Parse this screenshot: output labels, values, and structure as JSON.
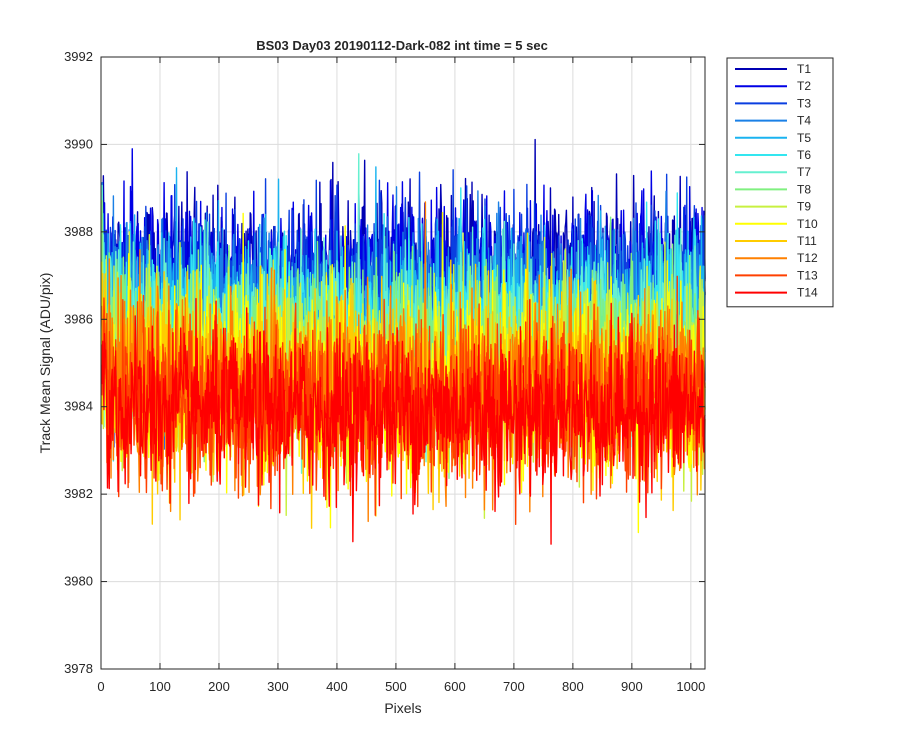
{
  "chart_data": {
    "type": "line",
    "title": "BS03 Day03 20190112-Dark-082 int time = 5 sec",
    "xlabel": "Pixels",
    "ylabel": "Track Mean Signal (ADU/pix)",
    "xlim": [
      0,
      1024
    ],
    "ylim": [
      3978,
      3992
    ],
    "xticks": [
      0,
      100,
      200,
      300,
      400,
      500,
      600,
      700,
      800,
      900,
      1000
    ],
    "yticks": [
      3978,
      3980,
      3982,
      3984,
      3986,
      3988,
      3990,
      3992
    ],
    "grid": true,
    "legend_position": "outside-top-right",
    "x": "pixel index 1..1024",
    "series": [
      {
        "name": "T1",
        "color": "#0000b3",
        "mean": 3987.0,
        "noise": 0.95
      },
      {
        "name": "T2",
        "color": "#0000e6",
        "mean": 3986.9,
        "noise": 0.95
      },
      {
        "name": "T3",
        "color": "#0a3fe0",
        "mean": 3986.6,
        "noise": 0.95
      },
      {
        "name": "T4",
        "color": "#1a80e6",
        "mean": 3986.2,
        "noise": 1.0
      },
      {
        "name": "T5",
        "color": "#1ab3f0",
        "mean": 3985.9,
        "noise": 1.0
      },
      {
        "name": "T6",
        "color": "#33e6f0",
        "mean": 3985.7,
        "noise": 1.0
      },
      {
        "name": "T7",
        "color": "#66f0d0",
        "mean": 3985.5,
        "noise": 1.0
      },
      {
        "name": "T8",
        "color": "#80f080",
        "mean": 3985.3,
        "noise": 1.0
      },
      {
        "name": "T9",
        "color": "#c8f040",
        "mean": 3985.0,
        "noise": 1.05
      },
      {
        "name": "T10",
        "color": "#ffff00",
        "mean": 3984.5,
        "noise": 1.1
      },
      {
        "name": "T11",
        "color": "#ffcc00",
        "mean": 3984.5,
        "noise": 1.05
      },
      {
        "name": "T12",
        "color": "#ff8000",
        "mean": 3984.4,
        "noise": 1.0
      },
      {
        "name": "T13",
        "color": "#ff4000",
        "mean": 3984.1,
        "noise": 0.95
      },
      {
        "name": "T14",
        "color": "#ff0000",
        "mean": 3983.9,
        "noise": 0.9
      }
    ]
  }
}
